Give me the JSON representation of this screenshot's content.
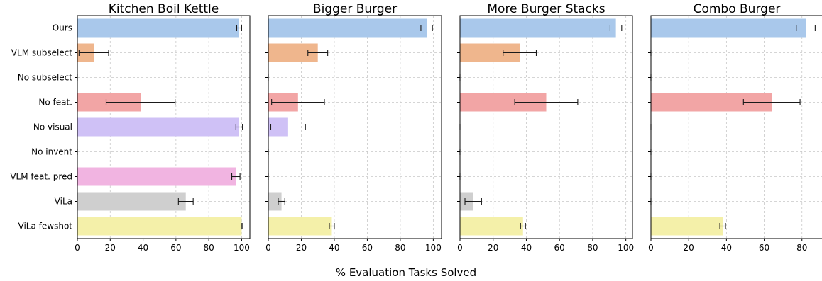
{
  "chart_data": {
    "type": "bar",
    "orientation": "horizontal",
    "xlabel": "% Evaluation Tasks Solved",
    "categories": [
      "Ours",
      "VLM subselect",
      "No subselect",
      "No feat.",
      "No visual",
      "No invent",
      "VLM feat. pred",
      "ViLa",
      "ViLa fewshot"
    ],
    "colors": [
      "#a9c8eb",
      "#efb68d",
      "#efb68d",
      "#f2a5a5",
      "#cfc1f6",
      "#cfc1f6",
      "#f1b4e1",
      "#cfcfcf",
      "#f4f0a9"
    ],
    "grid": true,
    "panels": [
      {
        "title": "Kitchen Boil Kettle",
        "xlim": [
          0,
          105
        ],
        "xticks": [
          "0",
          "20",
          "40",
          "60",
          "80",
          "100"
        ],
        "values": [
          98.5,
          10,
          0,
          38.5,
          98.5,
          0,
          96.5,
          66,
          100
        ],
        "errors": [
          1.5,
          9,
          0,
          21,
          2,
          0,
          2.5,
          4.5,
          0.3
        ]
      },
      {
        "title": "Bigger Burger",
        "xlim": [
          0,
          105
        ],
        "xticks": [
          "0",
          "20",
          "40",
          "60",
          "80",
          "100"
        ],
        "values": [
          96,
          30,
          0,
          18,
          12,
          0,
          0,
          8,
          38.5
        ],
        "errors": [
          3.5,
          6,
          0,
          16,
          10.5,
          0,
          0,
          2,
          1.5
        ]
      },
      {
        "title": "More Burger Stacks",
        "xlim": [
          0,
          104
        ],
        "xticks": [
          "0",
          "20",
          "40",
          "60",
          "80",
          "100"
        ],
        "values": [
          94,
          36,
          0,
          52,
          0,
          0,
          0,
          8,
          38
        ],
        "errors": [
          3.5,
          10,
          0,
          19,
          0,
          0,
          0,
          5,
          1.5
        ]
      },
      {
        "title": "Combo Burger",
        "xlim": [
          0,
          91
        ],
        "xticks": [
          "0",
          "20",
          "40",
          "60",
          "80"
        ],
        "values": [
          82,
          0,
          0,
          64,
          0,
          0,
          0,
          0,
          38
        ],
        "errors": [
          5,
          0,
          0,
          15,
          0,
          0,
          0,
          0,
          1.5
        ]
      }
    ]
  }
}
